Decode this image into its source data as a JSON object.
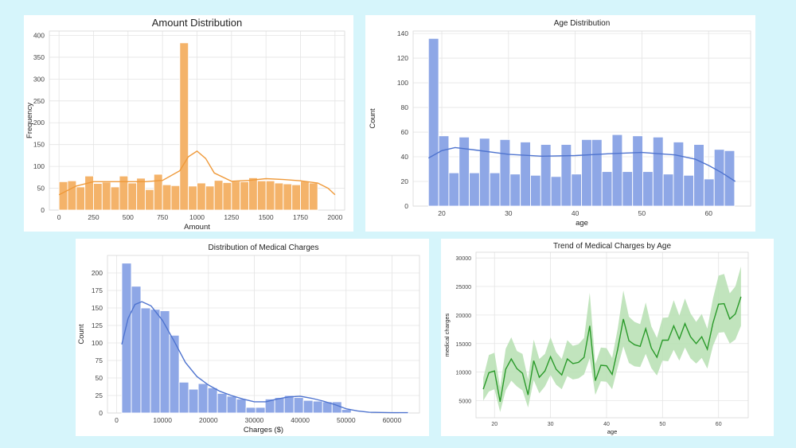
{
  "chart_data": [
    {
      "type": "bar",
      "title": "Amount Distribution",
      "xlabel": "Amount",
      "ylabel": "Frequency",
      "xlim": [
        -70,
        2070
      ],
      "ylim": [
        0,
        410
      ],
      "x_ticks": [
        0,
        250,
        500,
        750,
        1000,
        1250,
        1500,
        1750,
        2000
      ],
      "y_ticks": [
        0,
        50,
        100,
        150,
        200,
        250,
        300,
        350,
        400
      ],
      "bin_edges": [
        0,
        62.5,
        125,
        187.5,
        250,
        312.5,
        375,
        437.5,
        500,
        562.5,
        625,
        687.5,
        750,
        812.5,
        875,
        937.5,
        1000,
        1062.5,
        1125,
        1187.5,
        1250,
        1312.5,
        1375,
        1437.5,
        1500,
        1562.5,
        1625,
        1687.5,
        1750,
        1812.5,
        1875,
        1937.5,
        2000
      ],
      "values": [
        65,
        67,
        53,
        78,
        61,
        64,
        53,
        78,
        62,
        73,
        47,
        82,
        58,
        56,
        383,
        55,
        62,
        55,
        68,
        63,
        66,
        65,
        74,
        67,
        67,
        62,
        60,
        58,
        66,
        62,
        0,
        0
      ],
      "kde": [
        [
          0,
          35
        ],
        [
          125,
          55
        ],
        [
          250,
          65
        ],
        [
          375,
          65
        ],
        [
          500,
          65
        ],
        [
          625,
          65
        ],
        [
          750,
          68
        ],
        [
          875,
          90
        ],
        [
          937,
          122
        ],
        [
          1000,
          135
        ],
        [
          1063,
          118
        ],
        [
          1125,
          85
        ],
        [
          1250,
          66
        ],
        [
          1375,
          68
        ],
        [
          1500,
          72
        ],
        [
          1625,
          70
        ],
        [
          1750,
          67
        ],
        [
          1875,
          62
        ],
        [
          1950,
          50
        ],
        [
          2000,
          35
        ]
      ],
      "bar_color": "#f4b36a",
      "line_color": "#ef9a3b"
    },
    {
      "type": "bar",
      "title": "Age Distribution",
      "xlabel": "age",
      "ylabel": "Count",
      "xlim": [
        15.7,
        66.3
      ],
      "ylim": [
        0,
        142
      ],
      "x_ticks": [
        20,
        30,
        40,
        50,
        60
      ],
      "y_ticks": [
        0,
        20,
        40,
        60,
        80,
        100,
        120,
        140
      ],
      "bin_edges": [
        18,
        19.53,
        21.06,
        22.59,
        24.12,
        25.65,
        27.18,
        28.71,
        30.24,
        31.77,
        33.3,
        34.83,
        36.36,
        37.89,
        39.42,
        40.95,
        42.48,
        44.01,
        45.54,
        47.07,
        48.6,
        50.13,
        51.66,
        53.19,
        54.72,
        56.25,
        57.78,
        59.31,
        60.84,
        62.37,
        63.9
      ],
      "values": [
        136,
        57,
        27,
        56,
        27,
        55,
        27,
        54,
        26,
        52,
        25,
        50,
        24,
        50,
        26,
        54,
        54,
        28,
        58,
        28,
        57,
        28,
        56,
        26,
        52,
        25,
        50,
        22,
        46,
        45
      ],
      "kde": [
        [
          18,
          39
        ],
        [
          20,
          45
        ],
        [
          22,
          47.5
        ],
        [
          25,
          45.5
        ],
        [
          30,
          42
        ],
        [
          35,
          40.5
        ],
        [
          40,
          41
        ],
        [
          45,
          42.5
        ],
        [
          50,
          43.5
        ],
        [
          55,
          41.5
        ],
        [
          58,
          38
        ],
        [
          60,
          33
        ],
        [
          62,
          27
        ],
        [
          64,
          20
        ]
      ],
      "bar_color": "#8ea7e6",
      "line_color": "#4f74cf"
    },
    {
      "type": "bar",
      "title": "Distribution of Medical Charges",
      "xlabel": "Charges ($)",
      "ylabel": "Count",
      "xlim": [
        -2000,
        66000
      ],
      "ylim": [
        0,
        225
      ],
      "x_ticks": [
        0,
        10000,
        20000,
        30000,
        40000,
        50000,
        60000
      ],
      "y_ticks": [
        0,
        25,
        50,
        75,
        100,
        125,
        150,
        175,
        200
      ],
      "bin_edges": [
        1122,
        3205,
        5289,
        7373,
        9456,
        11540,
        13623,
        15707,
        17791,
        19874,
        21958,
        24041,
        26125,
        28209,
        30292,
        32376,
        34459,
        36543,
        38627,
        40710,
        42794,
        44877,
        46961,
        49045,
        51128,
        53212,
        55295,
        57379,
        59463,
        61546,
        63630
      ],
      "values": [
        214,
        181,
        150,
        148,
        146,
        111,
        44,
        34,
        42,
        36,
        28,
        24,
        20,
        8,
        8,
        20,
        22,
        25,
        22,
        18,
        17,
        16,
        16,
        5,
        1,
        1,
        0,
        0,
        0,
        1
      ],
      "kde": [
        [
          1122,
          98
        ],
        [
          2500,
          135
        ],
        [
          4000,
          155
        ],
        [
          5500,
          159
        ],
        [
          7500,
          153
        ],
        [
          10000,
          132
        ],
        [
          12500,
          103
        ],
        [
          15000,
          72
        ],
        [
          17500,
          52
        ],
        [
          20000,
          40
        ],
        [
          22500,
          31
        ],
        [
          25000,
          25
        ],
        [
          27500,
          20
        ],
        [
          30000,
          16
        ],
        [
          32500,
          16
        ],
        [
          35000,
          20
        ],
        [
          37500,
          23
        ],
        [
          40000,
          24
        ],
        [
          42500,
          21
        ],
        [
          45000,
          17
        ],
        [
          47500,
          12
        ],
        [
          50000,
          6
        ],
        [
          52500,
          3
        ],
        [
          55000,
          1
        ],
        [
          60000,
          0.5
        ],
        [
          63500,
          0.5
        ]
      ],
      "bar_color": "#8ea7e6",
      "line_color": "#4f74cf"
    },
    {
      "type": "line",
      "title": "Trend of Medical Charges by Age",
      "xlabel": "age",
      "ylabel": "medical charges",
      "xlim": [
        16.7,
        65.3
      ],
      "ylim": [
        2000,
        31000
      ],
      "x_ticks": [
        20,
        30,
        40,
        50,
        60
      ],
      "y_ticks": [
        5000,
        10000,
        15000,
        20000,
        25000,
        30000
      ],
      "x": [
        18,
        19,
        20,
        21,
        22,
        23,
        24,
        25,
        26,
        27,
        28,
        29,
        30,
        31,
        32,
        33,
        34,
        35,
        36,
        37,
        38,
        39,
        40,
        41,
        42,
        43,
        44,
        45,
        46,
        47,
        48,
        49,
        50,
        51,
        52,
        53,
        54,
        55,
        56,
        57,
        58,
        59,
        60,
        61,
        62,
        63,
        64
      ],
      "y": [
        7000,
        9900,
        10200,
        4800,
        10500,
        12300,
        10600,
        9800,
        6000,
        12000,
        9100,
        10200,
        12700,
        10500,
        9500,
        12300,
        11500,
        11700,
        12600,
        18100,
        8500,
        11200,
        11100,
        9600,
        14000,
        19300,
        15500,
        14800,
        14500,
        17600,
        14200,
        12600,
        15600,
        15600,
        18100,
        15800,
        18500,
        16200,
        15000,
        16200,
        14000,
        18600,
        21900,
        22000,
        19300,
        20200,
        23200
      ],
      "ci_low": [
        5000,
        6600,
        7000,
        3000,
        6800,
        8500,
        7500,
        6800,
        3800,
        8600,
        6300,
        7500,
        9500,
        7800,
        7000,
        9300,
        8700,
        8900,
        9600,
        12400,
        6000,
        8400,
        8300,
        7000,
        10800,
        14500,
        11600,
        11000,
        10900,
        13200,
        10700,
        9400,
        12000,
        11900,
        13900,
        12000,
        14300,
        12400,
        11500,
        12500,
        10600,
        14600,
        16900,
        17000,
        15000,
        15700,
        18100
      ],
      "ci_high": [
        9000,
        13000,
        13400,
        7300,
        14100,
        16100,
        13700,
        13200,
        8700,
        15700,
        12300,
        13200,
        16100,
        13500,
        12300,
        15600,
        14600,
        14900,
        16000,
        23900,
        11400,
        14300,
        14200,
        12500,
        17600,
        24300,
        19700,
        18800,
        18400,
        22200,
        18000,
        16000,
        19500,
        19600,
        22600,
        19900,
        22900,
        20300,
        18800,
        20200,
        17600,
        22900,
        26900,
        27200,
        23800,
        25000,
        28500
      ],
      "line_color": "#2a9a2a",
      "band_color": "#b6dfb2"
    }
  ]
}
